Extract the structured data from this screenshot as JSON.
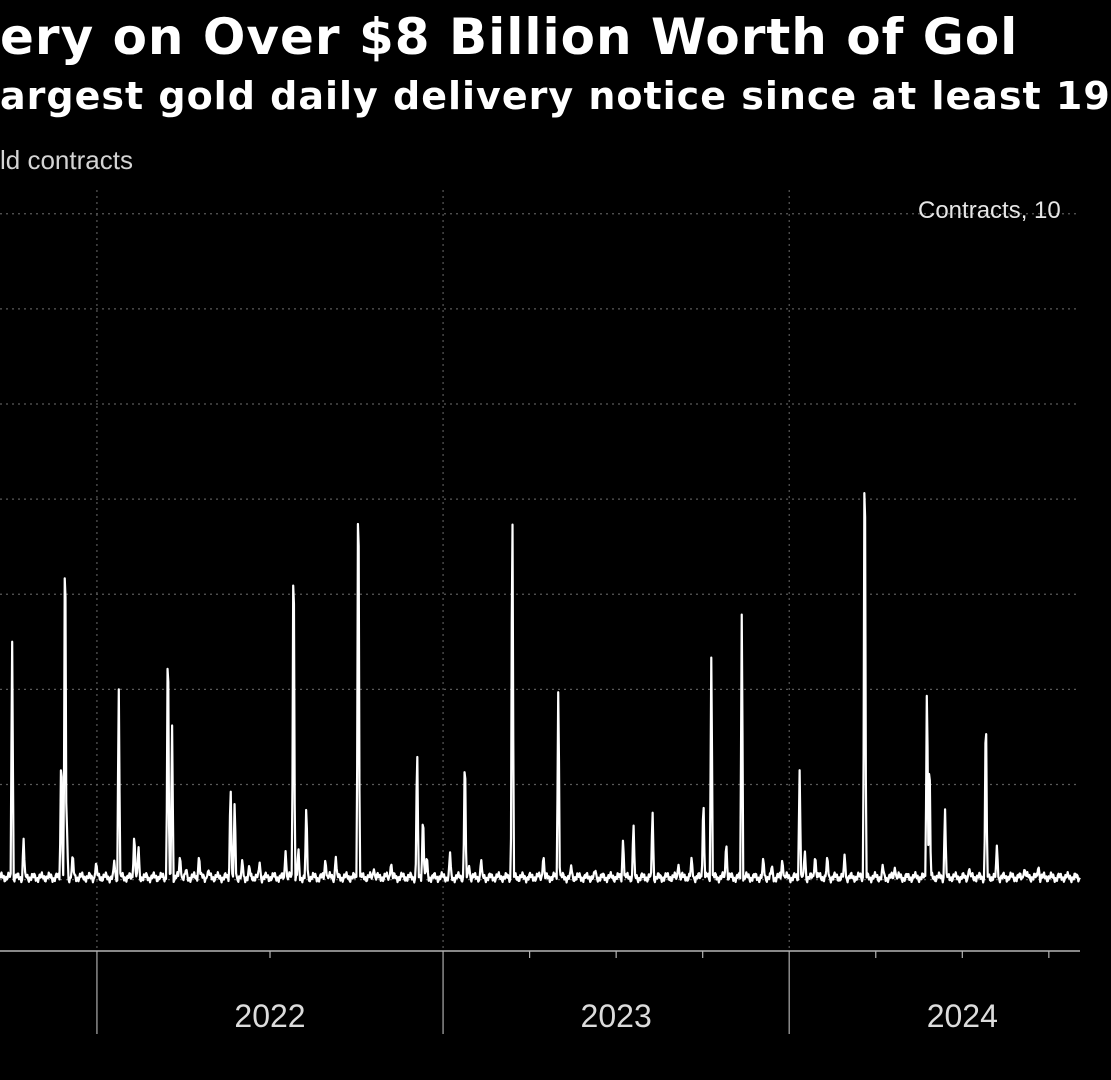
{
  "chart_data": {
    "type": "line",
    "title": "ery on Over $8 Billion Worth of Gol",
    "subtitle": "argest gold daily delivery notice since at least 19",
    "units_label": "ld contracts",
    "legend": "Contracts, 10",
    "x_unit": "years since start of 2021",
    "xlim": [
      0.72,
      3.84
    ],
    "ylim": [
      -3000,
      29000
    ],
    "grid": true,
    "x_tick_labels": [
      {
        "label": "2022",
        "x": 1.5
      },
      {
        "label": "2023",
        "x": 2.5
      },
      {
        "label": "2024",
        "x": 3.5
      }
    ],
    "year_dividers": [
      1.0,
      2.0,
      3.0
    ],
    "month_ticks": [
      1.5,
      2.25,
      2.5,
      2.75,
      3.25,
      3.5,
      3.75
    ],
    "series": [
      {
        "name": "Contracts",
        "baseline": 100,
        "spikes": [
          [
            0.755,
            10500
          ],
          [
            0.788,
            1800
          ],
          [
            0.897,
            6000
          ],
          [
            0.908,
            16600
          ],
          [
            0.913,
            2500
          ],
          [
            0.93,
            1200
          ],
          [
            0.998,
            800
          ],
          [
            1.05,
            800
          ],
          [
            1.063,
            8400
          ],
          [
            1.108,
            2100
          ],
          [
            1.12,
            1500
          ],
          [
            1.205,
            11600
          ],
          [
            1.217,
            6800
          ],
          [
            1.24,
            1100
          ],
          [
            1.258,
            500
          ],
          [
            1.295,
            1100
          ],
          [
            1.322,
            450
          ],
          [
            1.386,
            4300
          ],
          [
            1.398,
            3500
          ],
          [
            1.42,
            900
          ],
          [
            1.44,
            650
          ],
          [
            1.47,
            750
          ],
          [
            1.545,
            1200
          ],
          [
            1.568,
            16200
          ],
          [
            1.582,
            1400
          ],
          [
            1.605,
            3400
          ],
          [
            1.66,
            900
          ],
          [
            1.69,
            1000
          ],
          [
            1.755,
            19600
          ],
          [
            1.8,
            450
          ],
          [
            1.85,
            750
          ],
          [
            1.925,
            6000
          ],
          [
            1.942,
            3000
          ],
          [
            1.953,
            1100
          ],
          [
            2.02,
            1200
          ],
          [
            2.063,
            5900
          ],
          [
            2.075,
            600
          ],
          [
            2.11,
            900
          ],
          [
            2.2,
            17400
          ],
          [
            2.29,
            1100
          ],
          [
            2.333,
            8700
          ],
          [
            2.37,
            600
          ],
          [
            2.44,
            400
          ],
          [
            2.52,
            1800
          ],
          [
            2.55,
            2500
          ],
          [
            2.605,
            3100
          ],
          [
            2.68,
            650
          ],
          [
            2.718,
            1000
          ],
          [
            2.752,
            3700
          ],
          [
            2.775,
            9800
          ],
          [
            2.818,
            1700
          ],
          [
            2.863,
            11700
          ],
          [
            2.925,
            1000
          ],
          [
            2.95,
            650
          ],
          [
            2.98,
            900
          ],
          [
            3.03,
            4600
          ],
          [
            3.045,
            1300
          ],
          [
            3.075,
            1100
          ],
          [
            3.11,
            1100
          ],
          [
            3.16,
            1100
          ],
          [
            3.218,
            21300
          ],
          [
            3.27,
            650
          ],
          [
            3.305,
            500
          ],
          [
            3.398,
            9000
          ],
          [
            3.405,
            5800
          ],
          [
            3.45,
            3100
          ],
          [
            3.52,
            500
          ],
          [
            3.568,
            8000
          ],
          [
            3.6,
            1500
          ],
          [
            3.68,
            500
          ],
          [
            3.72,
            600
          ]
        ]
      }
    ]
  }
}
